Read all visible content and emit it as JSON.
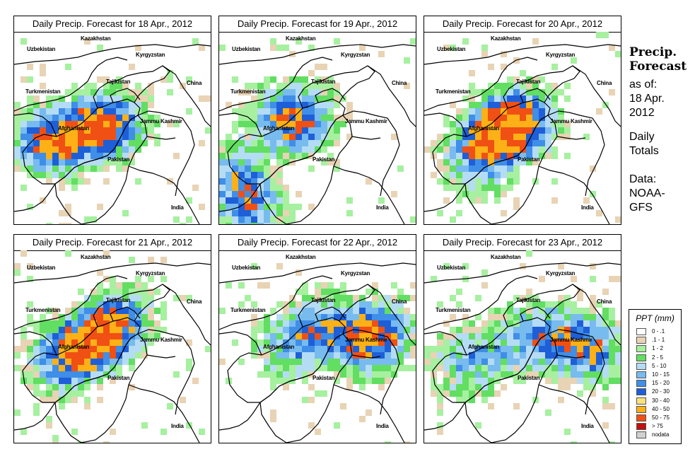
{
  "panels": [
    {
      "title": "Daily Precip. Forecast for  18 Apr., 2012",
      "seed": 11,
      "focus": "west"
    },
    {
      "title": "Daily Precip. Forecast for  19 Apr., 2012",
      "seed": 23,
      "focus": "southwest"
    },
    {
      "title": "Daily Precip. Forecast for  20 Apr., 2012",
      "seed": 37,
      "focus": "center"
    },
    {
      "title": "Daily Precip. Forecast for  21 Apr., 2012",
      "seed": 41,
      "focus": "north"
    },
    {
      "title": "Daily Precip. Forecast for  22 Apr., 2012",
      "seed": 53,
      "focus": "northeast"
    },
    {
      "title": "Daily Precip. Forecast for  23 Apr., 2012",
      "seed": 67,
      "focus": "east"
    }
  ],
  "map_labels": {
    "kazakhstan": "Kazakhstan",
    "uzbekistan": "Uzbekistan",
    "kyrgyzstan": "Kyrgyzstan",
    "tajikistan": "Tajikistan",
    "china": "China",
    "turkmenistan": "Turkmenistan",
    "jammu_kashmir": "Jammu Kashmir",
    "afghanistan": "Afghanistan",
    "pakistan": "Pakistan",
    "india": "India"
  },
  "side": {
    "title_line1": "Precip.",
    "title_line2": "Forecast",
    "asof_line1": "as of:",
    "asof_line2": "18 Apr.",
    "asof_line3": "2012",
    "daily_line1": "Daily",
    "daily_line2": "Totals",
    "data_line1": "Data:",
    "data_line2": "NOAA-",
    "data_line3": "GFS"
  },
  "legend": {
    "title": "PPT (mm)",
    "items": [
      {
        "label": "0 - .1",
        "color": "#ffffff"
      },
      {
        "label": ".1 - 1",
        "color": "#e8d3b4"
      },
      {
        "label": "1 - 2",
        "color": "#a6f0a0"
      },
      {
        "label": "2 - 5",
        "color": "#62de62"
      },
      {
        "label": "5 - 10",
        "color": "#b5dcf5"
      },
      {
        "label": "10 - 15",
        "color": "#78bbef"
      },
      {
        "label": "15 - 20",
        "color": "#3f8ee8"
      },
      {
        "label": "20 - 30",
        "color": "#1e5fd8"
      },
      {
        "label": "30 - 40",
        "color": "#fce27a"
      },
      {
        "label": "40 - 50",
        "color": "#fdb116"
      },
      {
        "label": "50 - 75",
        "color": "#f05014"
      },
      {
        "label": "> 75",
        "color": "#c01010"
      },
      {
        "label": "nodata",
        "color": "#d0d0d0"
      }
    ]
  }
}
